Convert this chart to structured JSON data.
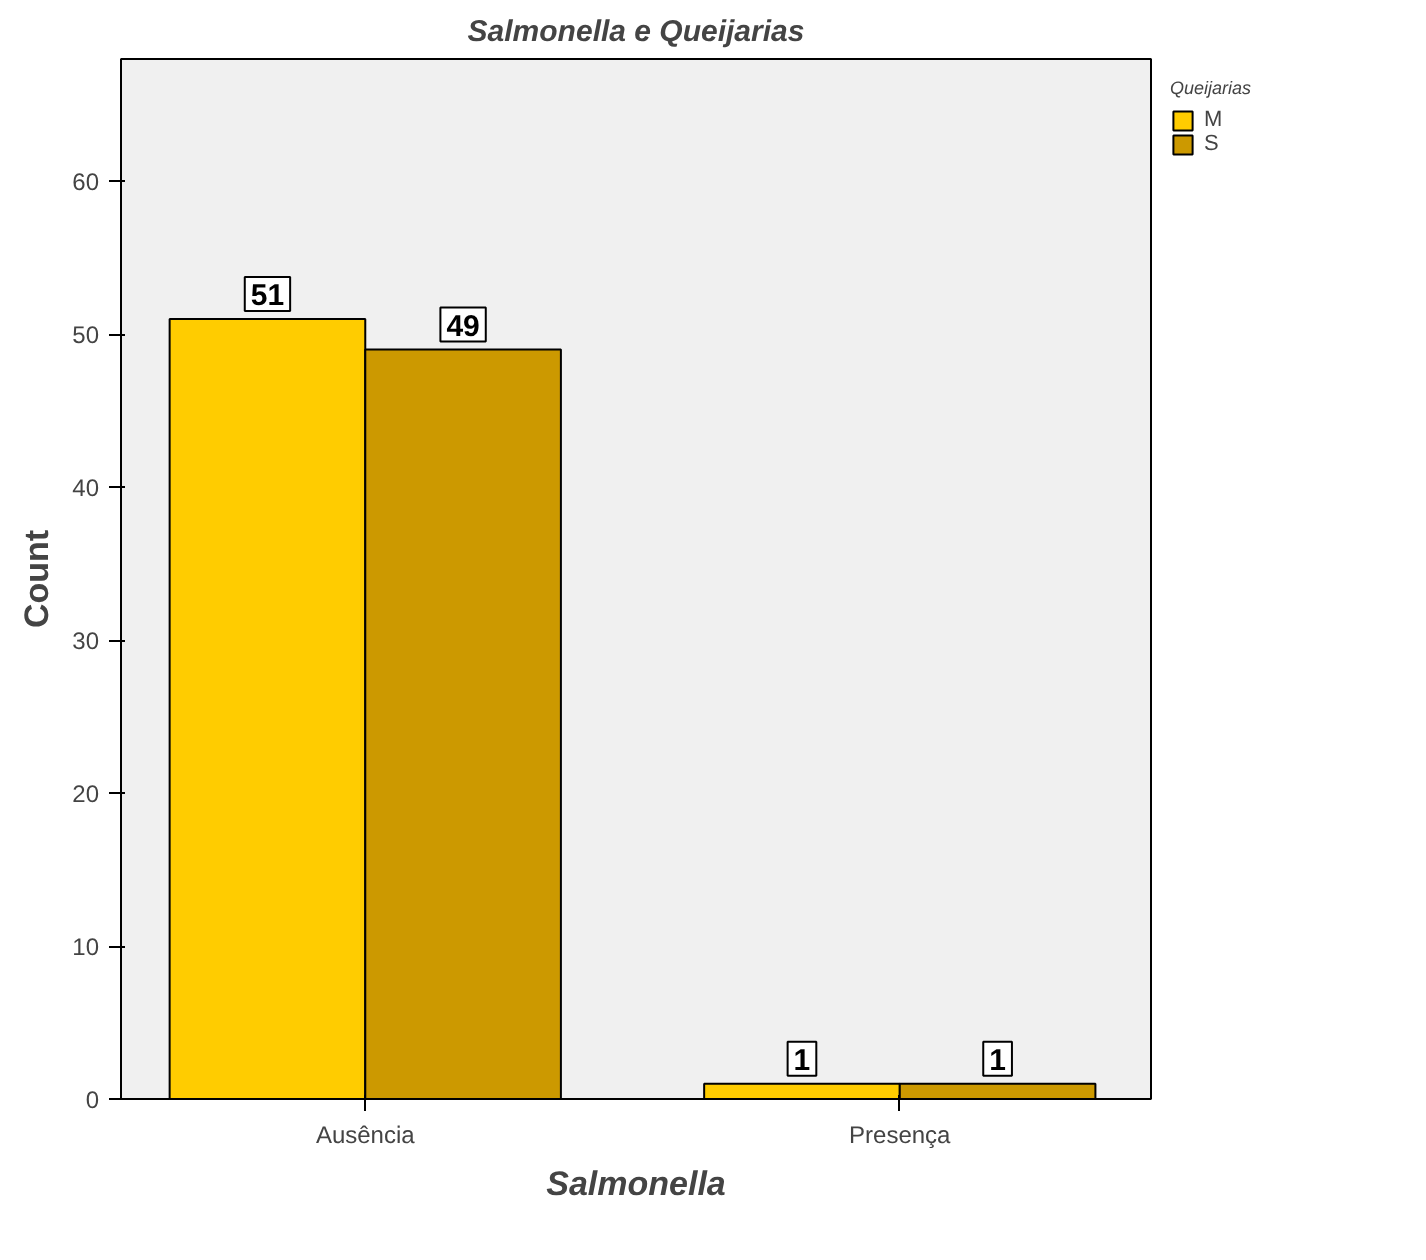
{
  "chart_data": {
    "type": "bar",
    "title": "Salmonella e Queijarias",
    "xlabel": "Salmonella",
    "ylabel": "Count",
    "legend_title": "Queijarias",
    "categories": [
      "Ausência",
      "Presença"
    ],
    "series": [
      {
        "name": "M",
        "color": "#ffcc00",
        "values": [
          51,
          1
        ]
      },
      {
        "name": "S",
        "color": "#cc9900",
        "values": [
          49,
          1
        ]
      }
    ],
    "ylim": [
      0,
      68
    ],
    "yticks": [
      0,
      10,
      20,
      30,
      40,
      50,
      60
    ],
    "grid": false,
    "legend": "top right",
    "data_labels": true
  }
}
